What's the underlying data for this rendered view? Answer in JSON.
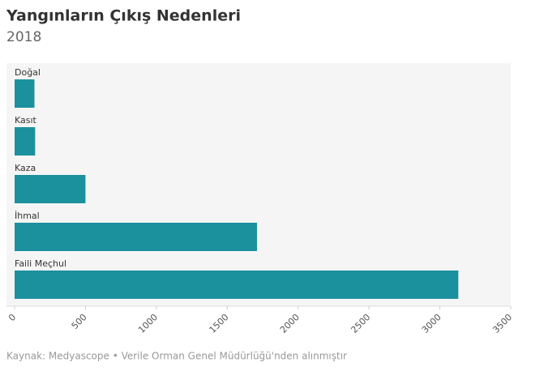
{
  "chart_data": {
    "type": "bar",
    "title": "Yangınların Çıkış Nedenleri",
    "subtitle": "2018",
    "categories": [
      "Doğal",
      "Kasıt",
      "Kaza",
      "İhmal",
      "Faili Meçhul"
    ],
    "values": [
      140,
      145,
      500,
      1710,
      3130
    ],
    "color": "#1b919e",
    "xlim": [
      0,
      3500
    ],
    "xticks": [
      0,
      500,
      1000,
      1500,
      2000,
      2500,
      3000,
      3500
    ],
    "source": "Kaynak: Medyascope • Verile Orman Genel Müdürlüğü'nden alınmıştır"
  }
}
